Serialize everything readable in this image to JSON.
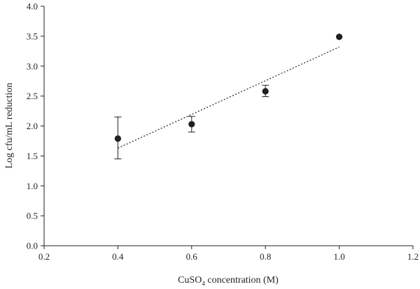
{
  "chart_data": {
    "type": "scatter",
    "xlabel": {
      "prefix": "CuSO",
      "subscript": "4",
      "suffix": " concentration (M)"
    },
    "ylabel": "Log cfu/mL reduction",
    "xlim": [
      0.2,
      1.2
    ],
    "ylim": [
      0.0,
      4.0
    ],
    "x_ticks": [
      "0.2",
      "0.4",
      "0.6",
      "0.8",
      "1.0",
      "1.2"
    ],
    "y_ticks": [
      "0.0",
      "0.5",
      "1.0",
      "1.5",
      "2.0",
      "2.5",
      "3.0",
      "3.5",
      "4.0"
    ],
    "grid": false,
    "points": [
      {
        "x": 0.4,
        "y": 1.79,
        "err_low": 1.45,
        "err_high": 2.15
      },
      {
        "x": 0.6,
        "y": 2.03,
        "err_low": 1.9,
        "err_high": 2.16
      },
      {
        "x": 0.8,
        "y": 2.58,
        "err_low": 2.49,
        "err_high": 2.68
      },
      {
        "x": 1.0,
        "y": 3.49
      }
    ],
    "fit_line": {
      "style": "dotted",
      "x": [
        0.4,
        1.0
      ],
      "y": [
        1.63,
        3.32
      ]
    },
    "colors": {
      "ink": "#231f20",
      "background": "#ffffff"
    }
  }
}
